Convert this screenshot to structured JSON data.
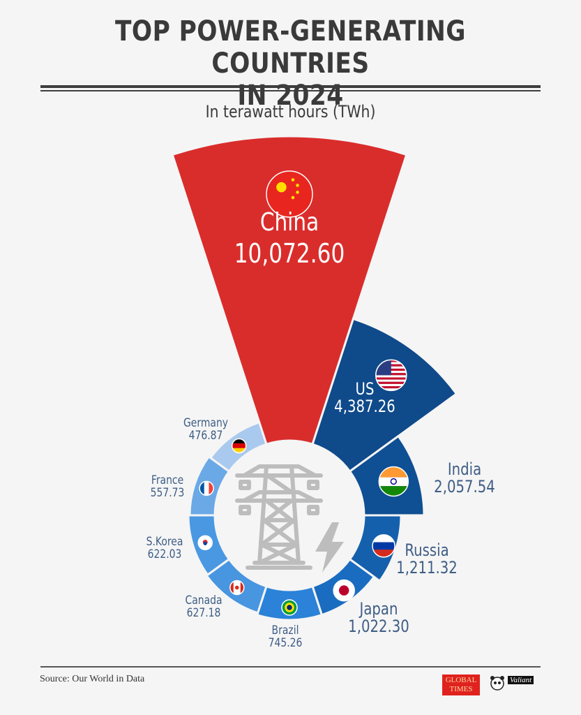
{
  "header": {
    "title_line1": "TOP POWER-GENERATING COUNTRIES",
    "title_line2": "IN 2024",
    "subtitle": "In terawatt hours (TWh)"
  },
  "footer": {
    "source": "Source: Our World in Data",
    "logo_global_times": "GLOBAL TIMES",
    "logo_valiant": "Valiant"
  },
  "colors": {
    "background": "#f5f5f5",
    "china": "#d92d2c",
    "us": "#0f4a8a",
    "india": "#0f4f93",
    "russia": "#1560ad",
    "japan": "#1a6cc0",
    "brazil": "#2b82d8",
    "canada": "#4895e0",
    "skorea": "#4a98e2",
    "france": "#6aa9e6",
    "germany": "#a9c9ee",
    "label": "#3e5d85",
    "icon": "#bdbdbd"
  },
  "segments": [
    {
      "country": "China",
      "value": "10,072.60",
      "flag": "china-flag"
    },
    {
      "country": "US",
      "value": "4,387.26",
      "flag": "us-flag"
    },
    {
      "country": "India",
      "value": "2,057.54",
      "flag": "india-flag"
    },
    {
      "country": "Russia",
      "value": "1,211.32",
      "flag": "russia-flag"
    },
    {
      "country": "Japan",
      "value": "1,022.30",
      "flag": "japan-flag"
    },
    {
      "country": "Brazil",
      "value": "745.26",
      "flag": "brazil-flag"
    },
    {
      "country": "Canada",
      "value": "627.18",
      "flag": "canada-flag"
    },
    {
      "country": "S.Korea",
      "value": "622.03",
      "flag": "south-korea-flag"
    },
    {
      "country": "France",
      "value": "557.73",
      "flag": "france-flag"
    },
    {
      "country": "Germany",
      "value": "476.87",
      "flag": "germany-flag"
    }
  ],
  "center_icon": "power-transmission-tower-icon",
  "chart_data": {
    "type": "polar-bar",
    "title": "TOP POWER-GENERATING COUNTRIES IN 2024",
    "subtitle": "In terawatt hours (TWh)",
    "unit": "TWh",
    "categories": [
      "China",
      "US",
      "India",
      "Russia",
      "Japan",
      "Brazil",
      "Canada",
      "S.Korea",
      "France",
      "Germany"
    ],
    "values": [
      10072.6,
      4387.26,
      2057.54,
      1211.32,
      1022.3,
      745.26,
      627.18,
      622.03,
      557.73,
      476.87
    ],
    "source": "Our World in Data",
    "legend": "none (direct labels with flags)"
  }
}
